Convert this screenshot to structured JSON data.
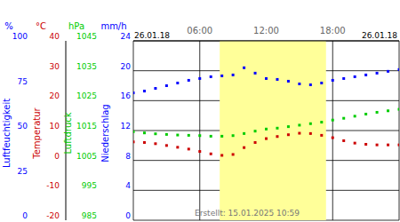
{
  "chart_data": {
    "type": "line",
    "date": "26.01.18",
    "footer": "Erstellt: 15.01.2025 10:59",
    "x": [
      0,
      1,
      2,
      3,
      4,
      5,
      6,
      7,
      8,
      9,
      10,
      11,
      12,
      13,
      14,
      15,
      16,
      17,
      18,
      19,
      20,
      21,
      22,
      23,
      24
    ],
    "xlim": [
      0,
      24
    ],
    "xticks": [
      {
        "value": 6,
        "label": "06:00"
      },
      {
        "value": 12,
        "label": "12:00"
      },
      {
        "value": 18,
        "label": "18:00"
      }
    ],
    "daylight": [
      7.8,
      17.4
    ],
    "grid": true,
    "axes": [
      {
        "title": "Luftfeuchtigkeit",
        "unit": "%",
        "color": "#0000ff",
        "ylim": [
          0,
          100
        ],
        "yticks": [
          0,
          25,
          50,
          75,
          100
        ]
      },
      {
        "title": "Temperatur",
        "unit": "°C",
        "color": "#cc0000",
        "ylim": [
          -20,
          40
        ],
        "yticks": [
          -20,
          -10,
          0,
          10,
          20,
          30,
          40
        ]
      },
      {
        "title": "Luftdruck",
        "unit": "hPa",
        "color": "#00cc00",
        "ylim": [
          985,
          1045
        ],
        "yticks": [
          985,
          995,
          1005,
          1015,
          1025,
          1035,
          1045
        ]
      },
      {
        "title": "Niederschlag",
        "unit": "mm/h",
        "color": "#0000ff",
        "ylim": [
          0,
          24
        ],
        "yticks": [
          0,
          4,
          8,
          12,
          16,
          20,
          24
        ]
      }
    ],
    "series": [
      {
        "name": "Luftfeuchtigkeit",
        "axis": "Luftfeuchtigkeit",
        "color": "#0000ff",
        "marker": "square",
        "line_style": "none",
        "values": [
          71,
          72,
          73.5,
          75,
          76.5,
          78,
          79,
          80,
          80.5,
          81,
          85,
          82,
          79,
          78.5,
          77.5,
          76,
          75.5,
          76.5,
          78,
          79,
          80,
          81,
          82,
          83,
          84
        ]
      },
      {
        "name": "Temperatur",
        "axis": "Temperatur",
        "color": "#cc0000",
        "marker": "square",
        "line_style": "none",
        "values": [
          6.2,
          6.0,
          5.6,
          5.0,
          4.4,
          3.8,
          3.0,
          2.2,
          1.7,
          2.0,
          4.3,
          6.0,
          7.3,
          8.0,
          8.6,
          9.1,
          9.0,
          8.4,
          7.6,
          6.6,
          5.8,
          5.4,
          5.2,
          5.2,
          5.2
        ]
      },
      {
        "name": "Luftdruck",
        "axis": "Luftdruck",
        "color": "#00cc00",
        "marker": "square",
        "line_style": "none",
        "values": [
          1014.6,
          1014.2,
          1013.9,
          1013.7,
          1013.5,
          1013.4,
          1013.3,
          1013.1,
          1013.1,
          1013.3,
          1014.0,
          1014.8,
          1015.5,
          1015.8,
          1016.3,
          1016.8,
          1017.3,
          1017.8,
          1018.5,
          1019.1,
          1019.8,
          1020.5,
          1021.1,
          1021.6,
          1022.1
        ]
      }
    ]
  }
}
